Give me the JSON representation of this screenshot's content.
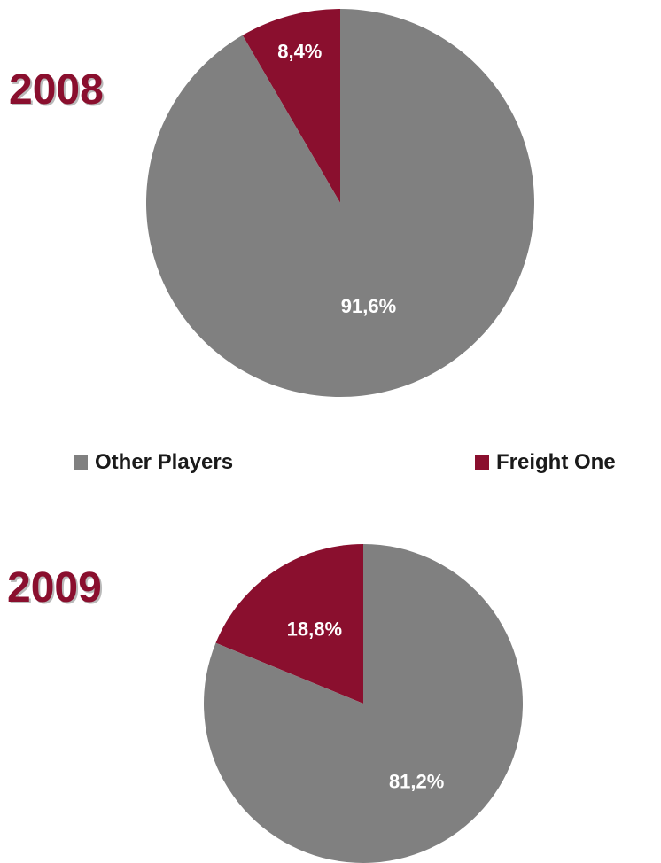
{
  "chart_data": [
    {
      "type": "pie",
      "title": "2008",
      "categories": [
        "Freight One",
        "Other Players"
      ],
      "values": [
        8.4,
        91.6
      ],
      "data_labels": [
        "8,4%",
        "91,6%"
      ],
      "colors": [
        "#8a0f2e",
        "#808080"
      ]
    },
    {
      "type": "pie",
      "title": "2009",
      "categories": [
        "Freight One",
        "Other Players"
      ],
      "values": [
        18.8,
        81.2
      ],
      "data_labels": [
        "18,8%",
        "81,2%"
      ],
      "colors": [
        "#8a0f2e",
        "#808080"
      ]
    }
  ],
  "legend": {
    "placement": "between",
    "items": [
      {
        "label": "Other Players",
        "color": "#808080"
      },
      {
        "label": "Freight One",
        "color": "#8a0f2e"
      }
    ]
  }
}
